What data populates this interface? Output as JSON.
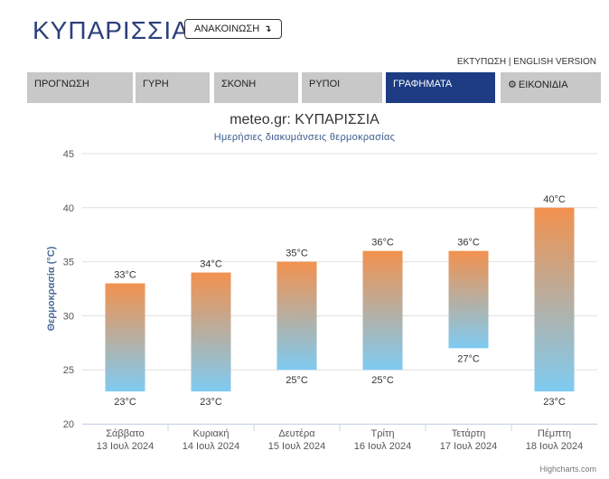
{
  "header": {
    "city": "ΚΥΠΑΡΙΣΣΙΑ",
    "announce_label": "ΑΝΑΚΟΙΝΩΣΗ",
    "announce_arrow": "↴",
    "print_label": "ΕΚΤΥΠΩΣΗ",
    "separator": "|",
    "english_label": "ENGLISH VERSION"
  },
  "tabs": [
    {
      "label": "ΠΡΟΓΝΩΣΗ",
      "active": false
    },
    {
      "label": "ΓΥΡΗ",
      "active": false
    },
    {
      "label": "ΣΚΟΝΗ",
      "active": false
    },
    {
      "label": "ΡΥΠΟΙ",
      "active": false
    },
    {
      "label": "ΓΡΑΦΗΜΑΤΑ",
      "active": true
    },
    {
      "label": "ΕΙΚΟΝΙΔΙΑ",
      "active": false,
      "icon": "gear-icon"
    }
  ],
  "colors": {
    "accent": "#1d3c84",
    "tab_bg": "#c8c8c8",
    "bar_top": "#f2914e",
    "bar_bottom": "#7ecbf2",
    "axis_title": "#4a6a96"
  },
  "credits": "Highcharts.com",
  "chart_data": {
    "type": "bar",
    "title": "meteo.gr: ΚΥΠΑΡΙΣΣΙΑ",
    "subtitle": "Ημερήσιες διακυμάνσεις θερμοκρασίας",
    "ylabel": "Θερμοκρασία (°C)",
    "xlabel": "",
    "ylim": [
      20,
      45
    ],
    "yticks": [
      20,
      25,
      30,
      35,
      40,
      45
    ],
    "grid": true,
    "categories": [
      {
        "day": "Σάββατο",
        "date": "13 Ιουλ 2024"
      },
      {
        "day": "Κυριακή",
        "date": "14 Ιουλ 2024"
      },
      {
        "day": "Δευτέρα",
        "date": "15 Ιουλ 2024"
      },
      {
        "day": "Τρίτη",
        "date": "16 Ιουλ 2024"
      },
      {
        "day": "Τετάρτη",
        "date": "17 Ιουλ 2024"
      },
      {
        "day": "Πέμπτη",
        "date": "18 Ιουλ 2024"
      }
    ],
    "series": [
      {
        "low": 23,
        "high": 33
      },
      {
        "low": 23,
        "high": 34
      },
      {
        "low": 25,
        "high": 35
      },
      {
        "low": 25,
        "high": 36
      },
      {
        "low": 27,
        "high": 36
      },
      {
        "low": 23,
        "high": 40
      }
    ],
    "unit": "°C"
  }
}
